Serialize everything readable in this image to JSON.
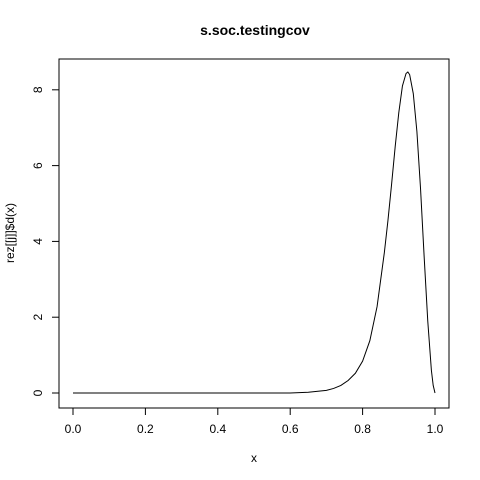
{
  "chart_data": {
    "type": "line",
    "title": "s.soc.testingcov",
    "xlabel": "x",
    "ylabel": "rez[[j]]$d(x)",
    "xlim": [
      0,
      1
    ],
    "ylim": [
      0,
      8.47
    ],
    "grid": false,
    "legend": "none",
    "x_ticks": [
      "0.0",
      "0.2",
      "0.4",
      "0.6",
      "0.8",
      "1.0"
    ],
    "x_tick_values": [
      0,
      0.2,
      0.4,
      0.6,
      0.8,
      1.0
    ],
    "y_ticks": [
      "0",
      "2",
      "4",
      "6",
      "8"
    ],
    "y_tick_values": [
      0,
      2,
      4,
      6,
      8
    ],
    "line_color": "#000000",
    "series": [
      {
        "x": [
          0.0,
          0.1,
          0.2,
          0.3,
          0.4,
          0.5,
          0.6,
          0.65,
          0.7,
          0.72,
          0.74,
          0.76,
          0.78,
          0.8,
          0.82,
          0.84,
          0.86,
          0.87,
          0.88,
          0.89,
          0.9,
          0.91,
          0.92,
          0.925,
          0.93,
          0.94,
          0.95,
          0.96,
          0.97,
          0.98,
          0.99,
          0.995,
          1.0
        ],
        "y": [
          0.0,
          0.0,
          0.0,
          0.0,
          0.0,
          0.0,
          0.0,
          0.02,
          0.07,
          0.12,
          0.2,
          0.33,
          0.52,
          0.84,
          1.38,
          2.28,
          3.7,
          4.55,
          5.5,
          6.5,
          7.4,
          8.1,
          8.43,
          8.47,
          8.4,
          7.9,
          6.9,
          5.4,
          3.6,
          1.9,
          0.6,
          0.2,
          0.0
        ]
      }
    ]
  }
}
